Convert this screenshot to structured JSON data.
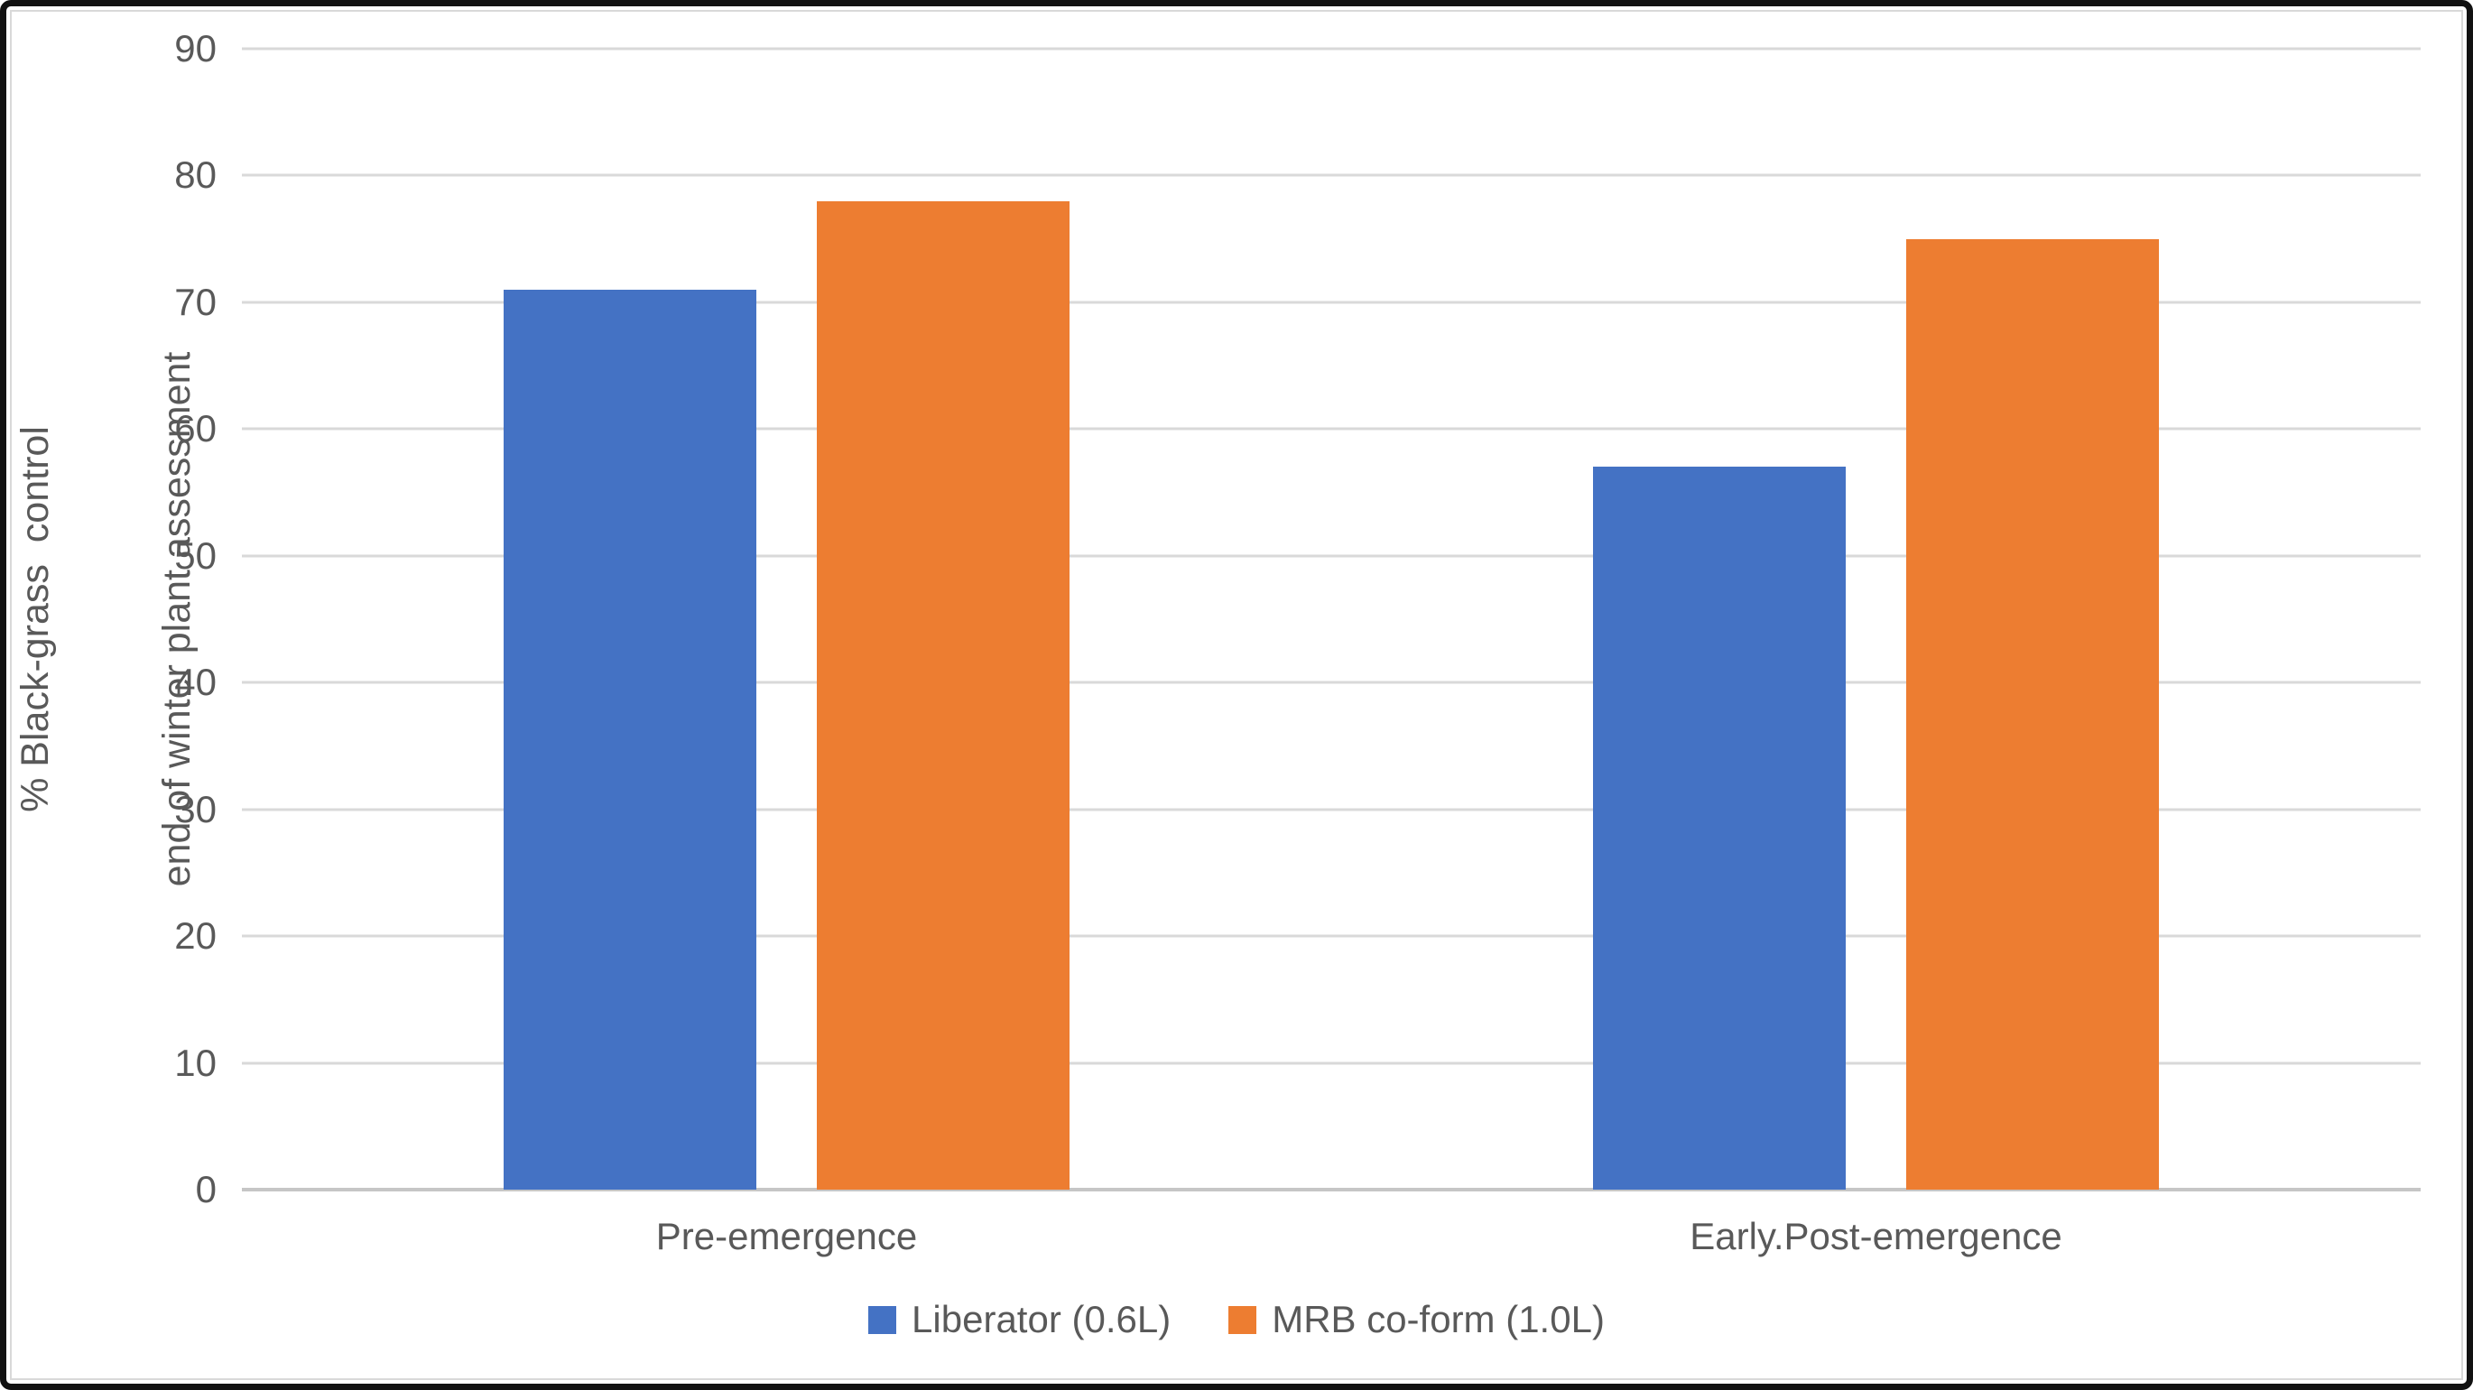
{
  "chart_data": {
    "type": "bar",
    "title": "",
    "categories": [
      "Pre-emergence",
      "Early.Post-emergence"
    ],
    "series": [
      {
        "name": "Liberator (0.6L)",
        "color": "#4472C4",
        "values": [
          71,
          57
        ]
      },
      {
        "name": "MRB co-form (1.0L)",
        "color": "#ED7D31",
        "values": [
          78,
          75
        ]
      }
    ],
    "ylabel_line1": "% Black-grass  control",
    "ylabel_line2": "end of winter plant assessment",
    "xlabel": "",
    "ylim": [
      0,
      90
    ],
    "yticks": [
      90,
      80,
      70,
      60,
      50,
      40,
      30,
      20,
      10,
      0
    ],
    "grid": "horizontal",
    "legend_position": "bottom"
  },
  "colors": {
    "series_blue": "#4472C4",
    "series_orange": "#ED7D31",
    "gridline": "#D9D9D9",
    "axis_line": "#C6C6C6",
    "text": "#595959",
    "background": "#FFFFFF",
    "outer_border": "#111111"
  }
}
